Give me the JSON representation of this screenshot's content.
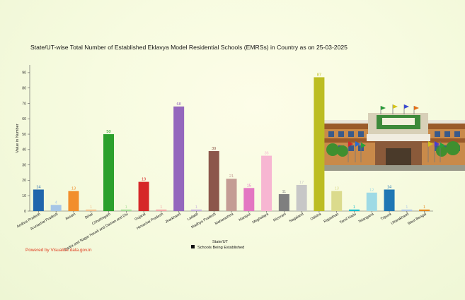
{
  "chart_data": {
    "type": "bar",
    "title": "State/UT-wise Total Number of Established Eklavya Model Residential Schools (EMRSs) in Country as on 25-03-2025",
    "xlabel": "State/UT",
    "ylabel": "Value in Number",
    "ylim": [
      0,
      95
    ],
    "yticks": [
      0,
      10,
      20,
      30,
      40,
      50,
      60,
      70,
      80,
      90
    ],
    "grid": false,
    "legend": {
      "position": "bottom-center",
      "entries": [
        "Schools Being Established"
      ]
    },
    "categories": [
      "Andhra Pradesh",
      "Arunachal Pradesh",
      "Assam",
      "Bihar",
      "Chhattisgarh",
      "Dadra and Nagar Haveli and Daman and Diu",
      "Gujarat",
      "Himachal Pradesh",
      "Jharkhand",
      "Ladakh",
      "Madhya Pradesh",
      "Maharashtra",
      "Manipur",
      "Meghalaya",
      "Mizoram",
      "Nagaland",
      "Odisha",
      "Rajasthan",
      "Tamil Nadu",
      "Telangana",
      "Tripura",
      "Uttarakhand",
      "West Bengal"
    ],
    "series": [
      {
        "name": "Schools Being Established",
        "values": [
          14,
          4,
          13,
          1,
          50,
          1,
          19,
          1,
          68,
          1,
          39,
          21,
          15,
          36,
          11,
          17,
          87,
          13,
          1,
          12,
          14,
          1,
          1
        ],
        "colors": [
          "#2166ac",
          "#a6c6e6",
          "#f28e2b",
          "#f2c08c",
          "#2ca02c",
          "#a5dd96",
          "#d62728",
          "#f4a6a6",
          "#9467bd",
          "#c8b2de",
          "#8c564b",
          "#c49c94",
          "#e377c2",
          "#f7b6d2",
          "#7f7f7f",
          "#c7c7c7",
          "#bcbd22",
          "#dbdb8d",
          "#17becf",
          "#9edae5",
          "#1f77b4",
          "#aec7e8",
          "#e6891e"
        ]
      }
    ]
  },
  "footer": {
    "powered_by": "Powered by Visualize.data.gov.in"
  }
}
